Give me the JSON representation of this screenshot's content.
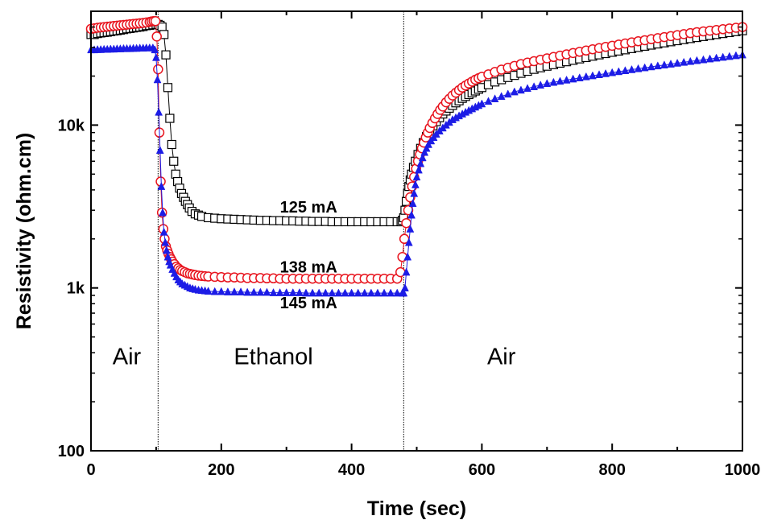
{
  "chart_data": {
    "type": "scatter",
    "title": "",
    "xlabel": "Time (sec)",
    "ylabel": "Resistivity (ohm.cm)",
    "xlim": [
      0,
      1000
    ],
    "ylim": [
      100,
      50000
    ],
    "yscale": "log",
    "grid": false,
    "x_ticks": [
      0,
      200,
      400,
      600,
      800,
      1000
    ],
    "x_tick_labels": [
      "0",
      "200",
      "400",
      "600",
      "800",
      "1000"
    ],
    "y_ticks": [
      100,
      1000,
      10000
    ],
    "y_tick_labels": [
      "100",
      "1k",
      "10k"
    ],
    "switch_times": [
      103,
      480
    ],
    "regions": [
      {
        "label": "Air",
        "x": 55,
        "y": 380
      },
      {
        "label": "Ethanol",
        "x": 280,
        "y": 380
      },
      {
        "label": "Air",
        "x": 630,
        "y": 380
      }
    ],
    "series": [
      {
        "name": "125 mA",
        "marker": "square",
        "color": "#000000",
        "label_pos": {
          "x": 290,
          "y": 3150
        },
        "x": [
          0,
          5,
          10,
          15,
          20,
          25,
          30,
          35,
          40,
          45,
          50,
          55,
          60,
          65,
          70,
          75,
          80,
          85,
          90,
          95,
          100,
          103,
          106,
          109,
          112,
          115,
          118,
          121,
          124,
          127,
          130,
          133,
          136,
          139,
          142,
          145,
          148,
          151,
          155,
          160,
          165,
          170,
          180,
          190,
          200,
          210,
          220,
          230,
          240,
          250,
          260,
          270,
          280,
          290,
          300,
          310,
          320,
          330,
          340,
          350,
          360,
          370,
          380,
          390,
          400,
          410,
          420,
          430,
          440,
          450,
          460,
          470,
          476,
          478,
          480,
          482,
          484,
          486,
          488,
          490,
          492,
          495,
          498,
          502,
          506,
          510,
          515,
          520,
          525,
          530,
          535,
          540,
          545,
          550,
          555,
          560,
          565,
          570,
          575,
          580,
          585,
          590,
          595,
          600,
          610,
          620,
          630,
          640,
          650,
          660,
          670,
          680,
          690,
          700,
          710,
          720,
          730,
          740,
          750,
          760,
          770,
          780,
          790,
          800,
          810,
          820,
          830,
          840,
          850,
          860,
          870,
          880,
          890,
          900,
          910,
          920,
          930,
          940,
          950,
          960,
          970,
          980,
          990,
          1000
        ],
        "y": [
          36000,
          36000,
          36500,
          36800,
          37000,
          37200,
          37500,
          37800,
          38000,
          38300,
          38600,
          39000,
          39200,
          39500,
          39800,
          40000,
          40300,
          40800,
          41000,
          41300,
          41500,
          41500,
          41000,
          40000,
          36000,
          27000,
          17000,
          11000,
          7600,
          6000,
          5000,
          4500,
          4100,
          3800,
          3600,
          3400,
          3250,
          3100,
          2950,
          2850,
          2800,
          2750,
          2700,
          2680,
          2660,
          2650,
          2640,
          2630,
          2620,
          2610,
          2600,
          2600,
          2590,
          2590,
          2580,
          2580,
          2570,
          2570,
          2560,
          2560,
          2560,
          2550,
          2550,
          2550,
          2550,
          2550,
          2550,
          2550,
          2550,
          2550,
          2550,
          2550,
          2550,
          2600,
          2700,
          3000,
          3400,
          3800,
          4200,
          4600,
          5000,
          5500,
          6000,
          6600,
          7200,
          7800,
          8500,
          9200,
          9900,
          10500,
          11100,
          11700,
          12200,
          12700,
          13200,
          13700,
          14100,
          14600,
          15000,
          15400,
          15800,
          16200,
          16600,
          17000,
          17700,
          18400,
          19000,
          19600,
          20200,
          20800,
          21400,
          22000,
          22500,
          23000,
          23500,
          24000,
          24500,
          25000,
          25500,
          26000,
          26500,
          27000,
          27500,
          28000,
          28500,
          29000,
          29500,
          30000,
          30500,
          31000,
          31500,
          32000,
          32500,
          33000,
          33500,
          34000,
          34500,
          35000,
          35500,
          36000,
          36500,
          37000,
          37500,
          38000
        ]
      },
      {
        "name": "138 mA",
        "marker": "circle",
        "color": "#e8141e",
        "label_pos": {
          "x": 290,
          "y": 1350
        },
        "x": [
          0,
          5,
          10,
          15,
          20,
          25,
          30,
          35,
          40,
          45,
          50,
          55,
          60,
          65,
          70,
          75,
          80,
          85,
          90,
          93,
          96,
          99,
          101,
          103,
          105,
          107,
          109,
          111,
          113,
          115,
          117,
          119,
          121,
          123,
          125,
          128,
          131,
          134,
          137,
          140,
          144,
          148,
          152,
          156,
          160,
          165,
          170,
          175,
          180,
          190,
          200,
          210,
          220,
          230,
          240,
          250,
          260,
          270,
          280,
          290,
          300,
          310,
          320,
          330,
          340,
          350,
          360,
          370,
          380,
          390,
          400,
          410,
          420,
          430,
          440,
          450,
          460,
          470,
          475,
          478,
          481,
          484,
          487,
          490,
          493,
          496,
          499,
          502,
          505,
          508,
          511,
          514,
          517,
          520,
          524,
          528,
          532,
          536,
          540,
          545,
          550,
          555,
          560,
          565,
          570,
          575,
          580,
          585,
          590,
          595,
          600,
          610,
          620,
          630,
          640,
          650,
          660,
          670,
          680,
          690,
          700,
          710,
          720,
          730,
          740,
          750,
          760,
          770,
          780,
          790,
          800,
          810,
          820,
          830,
          840,
          850,
          860,
          870,
          880,
          890,
          900,
          910,
          920,
          930,
          940,
          950,
          960,
          970,
          980,
          990,
          1000
        ],
        "y": [
          39000,
          39300,
          39600,
          39800,
          40000,
          40200,
          40400,
          40600,
          40800,
          41000,
          41200,
          41400,
          41600,
          41800,
          42000,
          42200,
          42400,
          42700,
          43000,
          43300,
          43500,
          43500,
          35000,
          22000,
          9000,
          4500,
          2900,
          2300,
          2000,
          1800,
          1700,
          1620,
          1550,
          1500,
          1450,
          1400,
          1350,
          1320,
          1290,
          1270,
          1250,
          1230,
          1220,
          1210,
          1200,
          1190,
          1185,
          1180,
          1175,
          1170,
          1165,
          1160,
          1160,
          1155,
          1150,
          1150,
          1150,
          1145,
          1145,
          1140,
          1140,
          1140,
          1140,
          1140,
          1140,
          1140,
          1140,
          1140,
          1140,
          1140,
          1140,
          1140,
          1140,
          1140,
          1140,
          1140,
          1140,
          1140,
          1250,
          1550,
          2000,
          2500,
          3000,
          3600,
          4200,
          4800,
          5400,
          6000,
          6600,
          7200,
          7800,
          8400,
          9000,
          9600,
          10300,
          11000,
          11700,
          12400,
          13000,
          13800,
          14500,
          15200,
          15800,
          16400,
          17000,
          17500,
          18000,
          18500,
          19000,
          19400,
          19800,
          20500,
          21200,
          21900,
          22500,
          23100,
          23700,
          24200,
          24700,
          25200,
          25700,
          26200,
          26700,
          27200,
          27700,
          28200,
          28700,
          29200,
          29700,
          30200,
          30700,
          31200,
          31700,
          32200,
          32700,
          33200,
          33700,
          34200,
          34700,
          35200,
          35700,
          36200,
          36700,
          37200,
          37600,
          38000,
          38400,
          38800,
          39200,
          39600,
          40000
        ]
      },
      {
        "name": "145 mA",
        "marker": "triangle",
        "color": "#1c1ce6",
        "label_pos": {
          "x": 290,
          "y": 810
        },
        "x": [
          0,
          5,
          10,
          15,
          20,
          25,
          30,
          35,
          40,
          45,
          50,
          55,
          60,
          65,
          70,
          75,
          80,
          85,
          90,
          95,
          98,
          100,
          102,
          104,
          106,
          108,
          110,
          112,
          114,
          116,
          118,
          120,
          122,
          125,
          128,
          131,
          134,
          137,
          140,
          144,
          148,
          152,
          156,
          160,
          165,
          170,
          175,
          180,
          190,
          200,
          210,
          220,
          230,
          240,
          250,
          260,
          270,
          280,
          290,
          300,
          310,
          320,
          330,
          340,
          350,
          360,
          370,
          380,
          390,
          400,
          410,
          420,
          430,
          440,
          450,
          460,
          470,
          478,
          480,
          482,
          484,
          486,
          488,
          490,
          492,
          494,
          496,
          498,
          500,
          503,
          506,
          509,
          512,
          515,
          518,
          522,
          526,
          530,
          535,
          540,
          545,
          550,
          555,
          560,
          565,
          570,
          575,
          580,
          585,
          590,
          595,
          600,
          610,
          620,
          630,
          640,
          650,
          660,
          670,
          680,
          690,
          700,
          710,
          720,
          730,
          740,
          750,
          760,
          770,
          780,
          790,
          800,
          810,
          820,
          830,
          840,
          850,
          860,
          870,
          880,
          890,
          900,
          910,
          920,
          930,
          940,
          950,
          960,
          970,
          980,
          990,
          1000
        ],
        "y": [
          29000,
          29000,
          29100,
          29100,
          29200,
          29200,
          29300,
          29300,
          29400,
          29400,
          29500,
          29500,
          29500,
          29600,
          29600,
          29700,
          29700,
          29800,
          29800,
          29800,
          29000,
          26000,
          19000,
          12000,
          7000,
          4200,
          2900,
          2200,
          1900,
          1700,
          1550,
          1450,
          1380,
          1300,
          1230,
          1170,
          1120,
          1090,
          1060,
          1040,
          1020,
          1000,
          990,
          980,
          970,
          965,
          960,
          955,
          950,
          950,
          945,
          945,
          945,
          940,
          940,
          940,
          940,
          935,
          935,
          935,
          935,
          935,
          930,
          930,
          930,
          930,
          930,
          930,
          930,
          930,
          930,
          930,
          930,
          930,
          930,
          930,
          930,
          930,
          930,
          1000,
          1250,
          1550,
          1900,
          2300,
          2800,
          3300,
          3800,
          4300,
          4800,
          5300,
          5800,
          6300,
          6800,
          7200,
          7600,
          8000,
          8400,
          8800,
          9200,
          9600,
          10000,
          10400,
          10800,
          11100,
          11400,
          11700,
          12000,
          12300,
          12600,
          12900,
          13200,
          13500,
          14000,
          14500,
          15000,
          15500,
          16000,
          16400,
          16800,
          17200,
          17600,
          18000,
          18300,
          18600,
          18900,
          19200,
          19500,
          19800,
          20100,
          20400,
          20700,
          21000,
          21300,
          21600,
          21900,
          22200,
          22500,
          22800,
          23100,
          23400,
          23700,
          24000,
          24300,
          24600,
          24900,
          25200,
          25500,
          25800,
          26100,
          26400,
          26700,
          27000
        ]
      }
    ]
  }
}
